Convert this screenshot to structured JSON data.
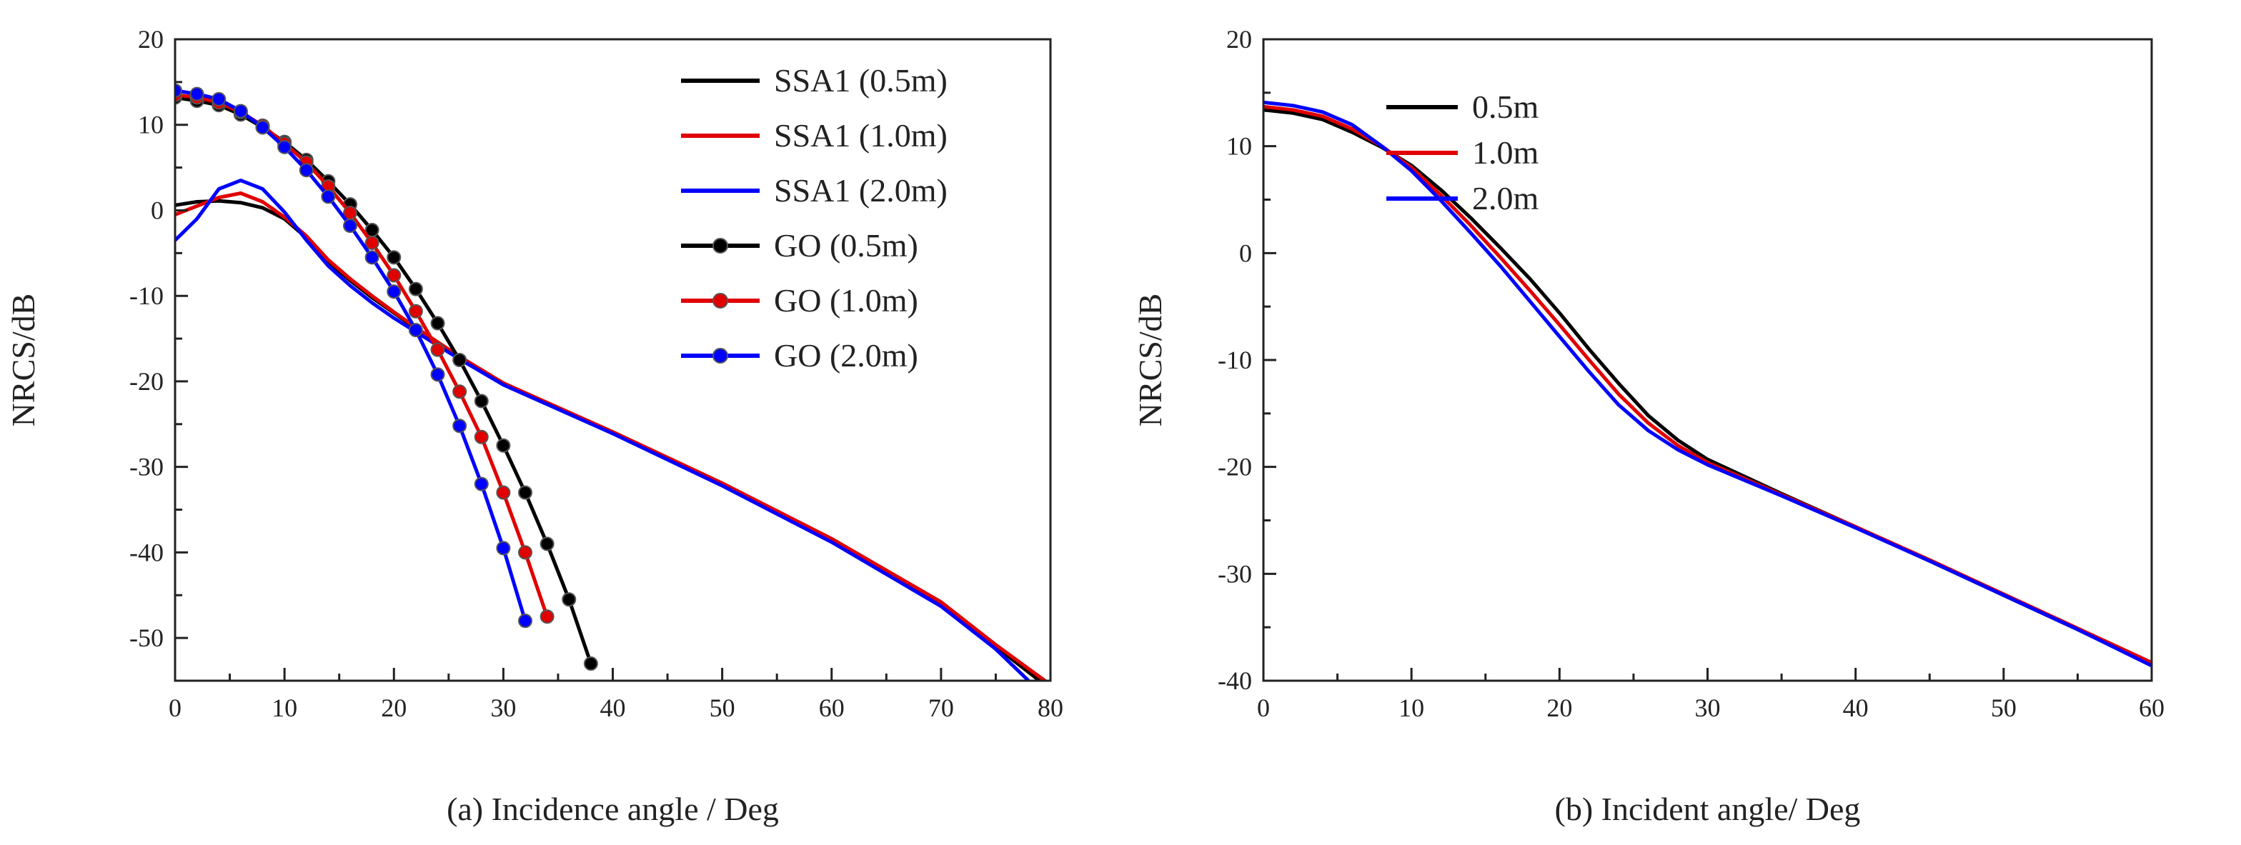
{
  "chart_data": [
    {
      "type": "line",
      "xlabel": "(a) Incidence angle / Deg",
      "ylabel": "NRCS/dB",
      "xlim": [
        0,
        80
      ],
      "ylim": [
        -55,
        20
      ],
      "xticks": [
        0,
        10,
        20,
        30,
        40,
        50,
        60,
        70,
        80
      ],
      "yticks": [
        -50,
        -40,
        -30,
        -20,
        -10,
        0,
        10,
        20
      ],
      "grid": false,
      "legend": "top-right",
      "series": [
        {
          "name": "SSA1 (0.5m)",
          "color": "#000000",
          "marker": "none",
          "x": [
            0,
            2,
            4,
            6,
            8,
            10,
            12,
            14,
            16,
            18,
            20,
            22,
            24,
            26,
            30,
            40,
            50,
            60,
            70,
            75,
            79
          ],
          "y": [
            0.6,
            1.0,
            1.1,
            0.9,
            0.3,
            -1.0,
            -3.2,
            -6.0,
            -8.2,
            -10.2,
            -12.0,
            -13.8,
            -15.5,
            -17.2,
            -20.3,
            -26.0,
            -32.0,
            -38.5,
            -46.0,
            -51.0,
            -55.0
          ]
        },
        {
          "name": "SSA1 (1.0m)",
          "color": "#e00000",
          "marker": "none",
          "x": [
            0,
            2,
            4,
            6,
            8,
            10,
            12,
            14,
            16,
            18,
            20,
            22,
            24,
            26,
            30,
            40,
            50,
            60,
            70,
            75,
            79.5
          ],
          "y": [
            -0.5,
            0.5,
            1.5,
            2.0,
            1.0,
            -0.8,
            -3.0,
            -5.8,
            -8.0,
            -10.0,
            -11.9,
            -13.7,
            -15.4,
            -17.1,
            -20.2,
            -25.9,
            -31.9,
            -38.4,
            -45.8,
            -50.8,
            -55.0
          ]
        },
        {
          "name": "SSA1 (2.0m)",
          "color": "#0000ff",
          "marker": "none",
          "x": [
            0,
            2,
            4,
            6,
            8,
            10,
            12,
            14,
            16,
            18,
            20,
            22,
            24,
            26,
            30,
            40,
            50,
            60,
            70,
            75,
            78
          ],
          "y": [
            -3.5,
            -1.0,
            2.5,
            3.5,
            2.5,
            -0.2,
            -3.5,
            -6.5,
            -8.8,
            -10.8,
            -12.6,
            -14.2,
            -15.8,
            -17.4,
            -20.4,
            -26.1,
            -32.2,
            -38.8,
            -46.3,
            -51.3,
            -55.0
          ]
        },
        {
          "name": "GO (0.5m)",
          "color": "#000000",
          "marker": "circle",
          "x": [
            0,
            2,
            4,
            6,
            8,
            10,
            12,
            14,
            16,
            18,
            20,
            22,
            24,
            26,
            28,
            30,
            32,
            34,
            36,
            38
          ],
          "y": [
            13.2,
            12.8,
            12.3,
            11.2,
            9.7,
            8.0,
            5.9,
            3.4,
            0.7,
            -2.3,
            -5.5,
            -9.2,
            -13.2,
            -17.5,
            -22.3,
            -27.5,
            -33.0,
            -39.0,
            -45.5,
            -53.0
          ]
        },
        {
          "name": "GO (1.0m)",
          "color": "#e00000",
          "marker": "circle",
          "x": [
            0,
            2,
            4,
            6,
            8,
            10,
            12,
            14,
            16,
            18,
            20,
            22,
            24,
            26,
            28,
            30,
            32,
            34
          ],
          "y": [
            13.5,
            13.2,
            12.6,
            11.5,
            9.9,
            7.8,
            5.6,
            2.8,
            -0.3,
            -3.8,
            -7.6,
            -11.8,
            -16.3,
            -21.2,
            -26.5,
            -33.0,
            -40.0,
            -47.5
          ]
        },
        {
          "name": "GO (2.0m)",
          "color": "#0000ff",
          "marker": "circle",
          "x": [
            0,
            2,
            4,
            6,
            8,
            10,
            12,
            14,
            16,
            18,
            20,
            22,
            24,
            26,
            28,
            30,
            32
          ],
          "y": [
            14.0,
            13.6,
            13.0,
            11.6,
            9.7,
            7.4,
            4.7,
            1.6,
            -1.8,
            -5.5,
            -9.5,
            -14.0,
            -19.2,
            -25.2,
            -32.0,
            -39.5,
            -48.0
          ]
        }
      ]
    },
    {
      "type": "line",
      "xlabel": "(b) Incident angle/ Deg",
      "ylabel": "NRCS/dB",
      "xlim": [
        0,
        60
      ],
      "ylim": [
        -40,
        20
      ],
      "xticks": [
        0,
        10,
        20,
        30,
        40,
        50,
        60
      ],
      "yticks": [
        -40,
        -30,
        -20,
        -10,
        0,
        10,
        20
      ],
      "grid": false,
      "legend": "top-right",
      "series": [
        {
          "name": "0.5m",
          "color": "#000000",
          "x": [
            0,
            2,
            4,
            6,
            8,
            10,
            12,
            14,
            16,
            18,
            20,
            22,
            24,
            26,
            28,
            30,
            35,
            40,
            45,
            50,
            55,
            60
          ],
          "y": [
            13.4,
            13.1,
            12.5,
            11.3,
            9.9,
            8.2,
            5.9,
            3.3,
            0.5,
            -2.4,
            -5.6,
            -9.0,
            -12.2,
            -15.2,
            -17.5,
            -19.3,
            -22.5,
            -25.6,
            -28.8,
            -32.0,
            -35.2,
            -38.5
          ]
        },
        {
          "name": "1.0m",
          "color": "#e00000",
          "x": [
            0,
            2,
            4,
            6,
            8,
            10,
            12,
            14,
            16,
            18,
            20,
            22,
            24,
            26,
            28,
            30,
            35,
            40,
            45,
            50,
            55,
            60
          ],
          "y": [
            13.7,
            13.4,
            12.8,
            11.6,
            10.0,
            8.0,
            5.4,
            2.6,
            -0.4,
            -3.5,
            -6.7,
            -10.0,
            -13.2,
            -15.9,
            -18.0,
            -19.6,
            -22.6,
            -25.6,
            -28.7,
            -31.9,
            -35.1,
            -38.3
          ]
        },
        {
          "name": "2.0m",
          "color": "#0000ff",
          "x": [
            0,
            2,
            4,
            6,
            8,
            10,
            12,
            14,
            16,
            18,
            20,
            22,
            24,
            26,
            28,
            30,
            35,
            40,
            45,
            50,
            55,
            60
          ],
          "y": [
            14.1,
            13.8,
            13.2,
            12.0,
            10.0,
            7.7,
            4.9,
            1.9,
            -1.2,
            -4.5,
            -7.8,
            -11.1,
            -14.2,
            -16.6,
            -18.4,
            -19.8,
            -22.7,
            -25.7,
            -28.8,
            -32.0,
            -35.2,
            -38.6
          ]
        }
      ]
    }
  ]
}
